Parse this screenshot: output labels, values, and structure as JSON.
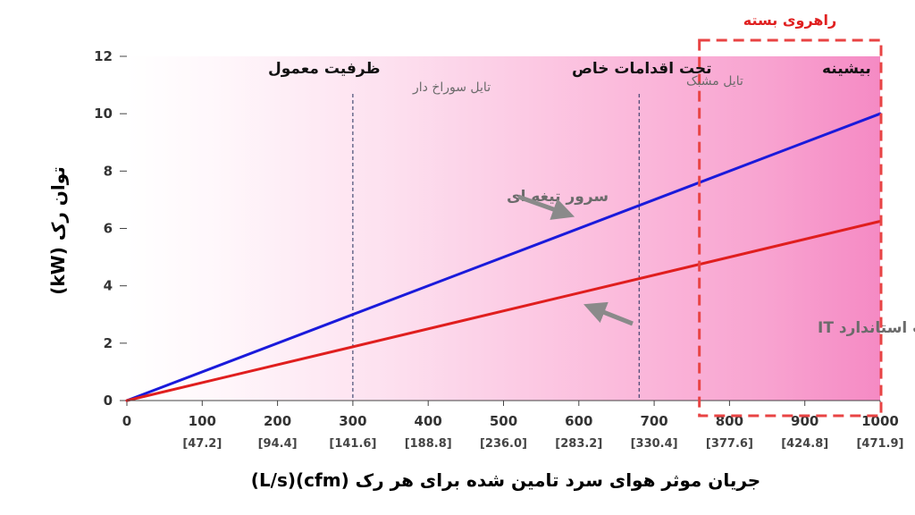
{
  "chart_data": {
    "type": "line",
    "x": [
      0,
      1000
    ],
    "xlim": [
      0,
      1000
    ],
    "ylim": [
      0,
      12
    ],
    "x_ticks": [
      "0",
      "100",
      "200",
      "300",
      "400",
      "500",
      "600",
      "700",
      "800",
      "900",
      "1000"
    ],
    "x_ticks_secondary": [
      "[47.2]",
      "[94.4]",
      "[141.6]",
      "[188.8]",
      "[236.0]",
      "[283.2]",
      "[330.4]",
      "[377.6]",
      "[424.8]",
      "[471.9]"
    ],
    "y_ticks": [
      "0",
      "2",
      "4",
      "6",
      "8",
      "10",
      "12"
    ],
    "xlabel": "جریان موثر هوای سرد تامین شده برای هر رک (cfm)(L/s)",
    "ylabel": "توان رک (kW)",
    "series": [
      {
        "name": "سرور تیغه ای",
        "color": "#1a1adb",
        "x": [
          0,
          1000
        ],
        "y": [
          0,
          10
        ]
      },
      {
        "name": "تجهیزات استاندارد IT",
        "color": "#e01e1e",
        "x": [
          0,
          1000
        ],
        "y": [
          0,
          6.25
        ]
      }
    ],
    "zones": [
      {
        "label": "ظرفیت معمول"
      },
      {
        "label": "تحت اقدامات خاص"
      },
      {
        "label": "بیشینه"
      }
    ],
    "markers": [
      {
        "label": "تایل سوراخ دار",
        "x": 300
      },
      {
        "label": "تایل مشبک",
        "x": 680
      }
    ],
    "highlight": {
      "label": "راهروی بسته",
      "x_range": [
        760,
        1000
      ],
      "color": "#e84444"
    },
    "grid": false
  }
}
